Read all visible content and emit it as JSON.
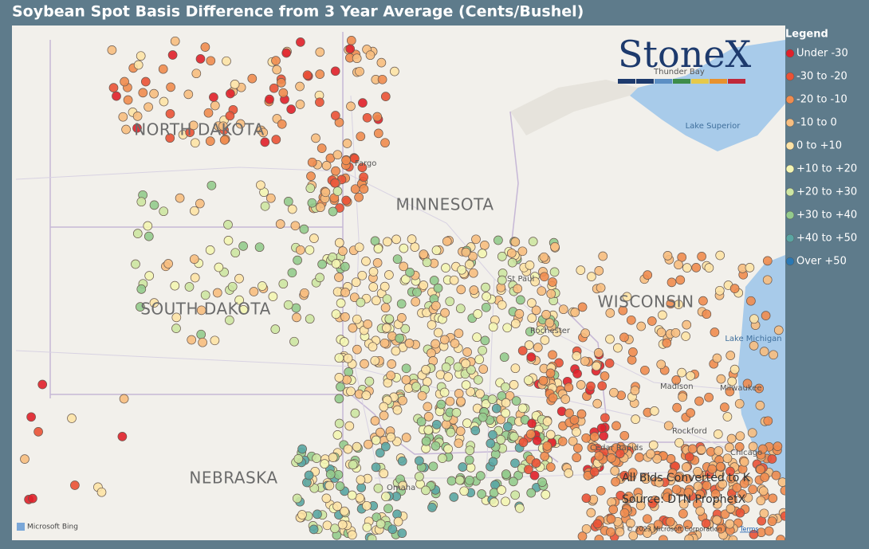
{
  "title": "Soybean Spot Basis Difference from 3 Year Average (Cents/Bushel)",
  "legend": {
    "title": "Legend",
    "items": [
      {
        "label": "Under -30",
        "color": "#e0202a"
      },
      {
        "label": "-30 to -20",
        "color": "#ea5236"
      },
      {
        "label": "-20 to -10",
        "color": "#f08c4f"
      },
      {
        "label": "-10 to 0",
        "color": "#f7be80"
      },
      {
        "label": "0 to +10",
        "color": "#fde3a6"
      },
      {
        "label": "+10 to +20",
        "color": "#f3f5b3"
      },
      {
        "label": "+20 to +30",
        "color": "#cde6a2"
      },
      {
        "label": "+30 to +40",
        "color": "#94cb8d"
      },
      {
        "label": "+40 to +50",
        "color": "#5aa6a3"
      },
      {
        "label": "Over +50",
        "color": "#2b78b3"
      }
    ]
  },
  "logo": "StoneX",
  "map_labels": {
    "states": [
      "NORTH DAKOTA",
      "SOUTH DAKOTA",
      "MINNESOTA",
      "WISCONSIN",
      "NEBRASKA"
    ],
    "water": [
      "Lake Superior",
      "Lake Michigan"
    ],
    "cities": [
      "Thunder Bay",
      "Fargo",
      "St Paul",
      "Rochester",
      "Madison",
      "Milwaukee",
      "Rockford",
      "Chicago",
      "Omaha",
      "Cedar Rapids"
    ]
  },
  "notes": [
    "All Bids Converted to K",
    "Source: DTN ProphetX"
  ],
  "attribution": {
    "provider": "Microsoft Bing",
    "copyright": "© 2023 Microsoft Corporation",
    "terms": "Terms"
  }
}
